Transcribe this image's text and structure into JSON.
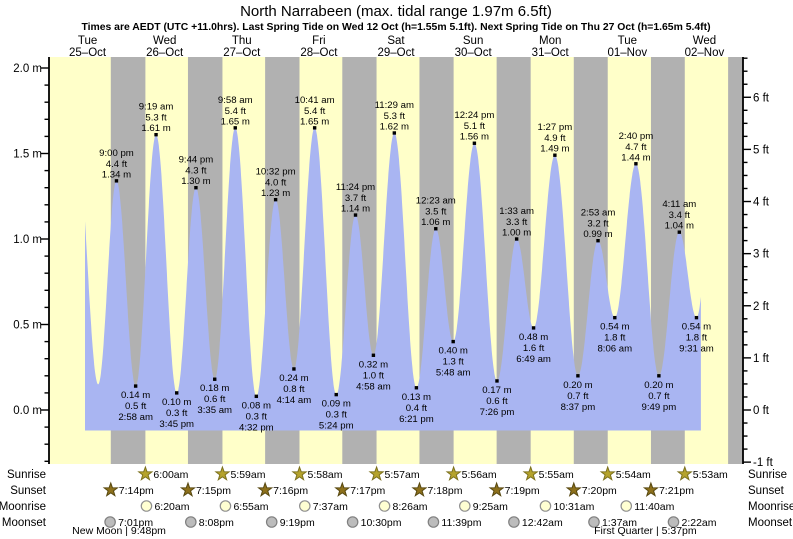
{
  "title": "North Narrabeen (max. tidal range 1.97m 6.5ft)",
  "subtitle": "Times are AEDT (UTC +11.0hrs). Last Spring Tide on Wed 12 Oct (h=1.55m 5.1ft). Next Spring Tide on Thu 27 Oct (h=1.65m 5.4ft)",
  "chart_data": {
    "type": "area",
    "title": "North Narrabeen (max. tidal range 1.97m 6.5ft)",
    "days": [
      {
        "dow": "Tue",
        "date": "25–Oct"
      },
      {
        "dow": "Wed",
        "date": "26–Oct"
      },
      {
        "dow": "Thu",
        "date": "27–Oct"
      },
      {
        "dow": "Fri",
        "date": "28–Oct"
      },
      {
        "dow": "Sat",
        "date": "29–Oct"
      },
      {
        "dow": "Sun",
        "date": "30–Oct"
      },
      {
        "dow": "Mon",
        "date": "31–Oct"
      },
      {
        "dow": "Tue",
        "date": "01–Nov"
      },
      {
        "dow": "Wed",
        "date": "02–Nov"
      }
    ],
    "y_left_labels": [
      {
        "m": 2.0,
        "text": "2.0 m"
      },
      {
        "m": 1.5,
        "text": "1.5 m"
      },
      {
        "m": 1.0,
        "text": "1.0 m"
      },
      {
        "m": 0.5,
        "text": "0.5 m"
      },
      {
        "m": 0.0,
        "text": "0.0 m"
      }
    ],
    "y_right_labels": [
      {
        "ft": 6,
        "text": "6 ft"
      },
      {
        "ft": 5,
        "text": "5 ft"
      },
      {
        "ft": 4,
        "text": "4 ft"
      },
      {
        "ft": 3,
        "text": "3 ft"
      },
      {
        "ft": 2,
        "text": "2 ft"
      },
      {
        "ft": 1,
        "text": "1 ft"
      },
      {
        "ft": 0,
        "text": "0 ft"
      },
      {
        "ft": -1,
        "text": "-1 ft"
      }
    ],
    "ylim_m": [
      -0.33,
      2.07
    ],
    "base_m": -0.12,
    "clip": {
      "start_abs_hour": 11.2,
      "end_abs_hour": 202.9
    },
    "extremes": [
      {
        "day": 0,
        "hour": 8.67,
        "m": 1.55,
        "type": "high",
        "show": false
      },
      {
        "day": 0,
        "hour": 15.3,
        "m": 0.15,
        "type": "low",
        "show": false
      },
      {
        "day": 0,
        "hour": 21.0,
        "m": 1.34,
        "ft": 4.4,
        "time": "9:00 pm",
        "type": "high",
        "show": true
      },
      {
        "day": 1,
        "hour": 2.97,
        "m": 0.14,
        "ft": 0.5,
        "time": "2:58 am",
        "type": "low",
        "show": true
      },
      {
        "day": 1,
        "hour": 9.32,
        "m": 1.61,
        "ft": 5.3,
        "time": "9:19 am",
        "type": "high",
        "show": true
      },
      {
        "day": 1,
        "hour": 15.75,
        "m": 0.1,
        "ft": 0.3,
        "time": "3:45 pm",
        "type": "low",
        "show": true
      },
      {
        "day": 1,
        "hour": 21.73,
        "m": 1.3,
        "ft": 4.3,
        "time": "9:44 pm",
        "type": "high",
        "show": true
      },
      {
        "day": 2,
        "hour": 3.58,
        "m": 0.18,
        "ft": 0.6,
        "time": "3:35 am",
        "type": "low",
        "show": true
      },
      {
        "day": 2,
        "hour": 9.97,
        "m": 1.65,
        "ft": 5.4,
        "time": "9:58 am",
        "type": "high",
        "show": true
      },
      {
        "day": 2,
        "hour": 16.53,
        "m": 0.08,
        "ft": 0.3,
        "time": "4:32 pm",
        "type": "low",
        "show": true
      },
      {
        "day": 2,
        "hour": 22.53,
        "m": 1.23,
        "ft": 4.0,
        "time": "10:32 pm",
        "type": "high",
        "show": true
      },
      {
        "day": 3,
        "hour": 4.23,
        "m": 0.24,
        "ft": 0.8,
        "time": "4:14 am",
        "type": "low",
        "show": true
      },
      {
        "day": 3,
        "hour": 10.68,
        "m": 1.65,
        "ft": 5.4,
        "time": "10:41 am",
        "type": "high",
        "show": true
      },
      {
        "day": 3,
        "hour": 17.4,
        "m": 0.09,
        "ft": 0.3,
        "time": "5:24 pm",
        "type": "low",
        "show": true
      },
      {
        "day": 3,
        "hour": 23.4,
        "m": 1.14,
        "ft": 3.7,
        "time": "11:24 pm",
        "type": "high",
        "show": true
      },
      {
        "day": 4,
        "hour": 4.97,
        "m": 0.32,
        "ft": 1.0,
        "time": "4:58 am",
        "type": "low",
        "show": true
      },
      {
        "day": 4,
        "hour": 11.48,
        "m": 1.62,
        "ft": 5.3,
        "time": "11:29 am",
        "type": "high",
        "show": true
      },
      {
        "day": 4,
        "hour": 18.35,
        "m": 0.13,
        "ft": 0.4,
        "time": "6:21 pm",
        "type": "low",
        "show": true
      },
      {
        "day": 5,
        "hour": 0.38,
        "m": 1.06,
        "ft": 3.5,
        "time": "12:23 am",
        "type": "high",
        "show": true
      },
      {
        "day": 5,
        "hour": 5.8,
        "m": 0.4,
        "ft": 1.3,
        "time": "5:48 am",
        "type": "low",
        "show": true
      },
      {
        "day": 5,
        "hour": 12.4,
        "m": 1.56,
        "ft": 5.1,
        "time": "12:24 pm",
        "type": "high",
        "show": true
      },
      {
        "day": 5,
        "hour": 19.43,
        "m": 0.17,
        "ft": 0.6,
        "time": "7:26 pm",
        "type": "low",
        "show": true
      },
      {
        "day": 6,
        "hour": 1.55,
        "m": 1.0,
        "ft": 3.3,
        "time": "1:33 am",
        "type": "high",
        "show": true
      },
      {
        "day": 6,
        "hour": 6.82,
        "m": 0.48,
        "ft": 1.6,
        "time": "6:49 am",
        "type": "low",
        "show": true
      },
      {
        "day": 6,
        "hour": 13.45,
        "m": 1.49,
        "ft": 4.9,
        "time": "1:27 pm",
        "type": "high",
        "show": true
      },
      {
        "day": 6,
        "hour": 20.62,
        "m": 0.2,
        "ft": 0.7,
        "time": "8:37 pm",
        "type": "low",
        "show": true
      },
      {
        "day": 7,
        "hour": 2.88,
        "m": 0.99,
        "ft": 3.2,
        "time": "2:53 am",
        "type": "high",
        "show": true
      },
      {
        "day": 7,
        "hour": 8.1,
        "m": 0.54,
        "ft": 1.8,
        "time": "8:06 am",
        "type": "low",
        "show": true
      },
      {
        "day": 7,
        "hour": 14.67,
        "m": 1.44,
        "ft": 4.7,
        "time": "2:40 pm",
        "type": "high",
        "show": true
      },
      {
        "day": 7,
        "hour": 21.82,
        "m": 0.2,
        "ft": 0.7,
        "time": "9:49 pm",
        "type": "low",
        "show": true
      },
      {
        "day": 8,
        "hour": 4.18,
        "m": 1.04,
        "ft": 3.4,
        "time": "4:11 am",
        "type": "high",
        "show": true
      },
      {
        "day": 8,
        "hour": 9.52,
        "m": 0.54,
        "ft": 1.8,
        "time": "9:31 am",
        "type": "low",
        "show": true
      },
      {
        "day": 8,
        "hour": 15.3,
        "m": 1.45,
        "type": "high",
        "show": false
      }
    ],
    "night_bands_days": [
      [
        0.8014,
        1.25
      ],
      [
        1.8021,
        2.2493
      ],
      [
        2.8028,
        3.2486
      ],
      [
        3.8035,
        4.2479
      ],
      [
        4.8042,
        5.2472
      ],
      [
        5.8049,
        6.2465
      ],
      [
        6.8056,
        7.2458
      ],
      [
        7.8063,
        8.2451
      ],
      [
        8.8069,
        9.0
      ]
    ]
  },
  "sun_moon": {
    "rows": [
      {
        "key": "sunrise",
        "label": "Sunrise",
        "icon": "sunrise-star-icon",
        "events": [
          {
            "day": 1,
            "hour": 6.0,
            "time": "6:00am"
          },
          {
            "day": 2,
            "hour": 5.983,
            "time": "5:59am"
          },
          {
            "day": 3,
            "hour": 5.967,
            "time": "5:58am"
          },
          {
            "day": 4,
            "hour": 5.95,
            "time": "5:57am"
          },
          {
            "day": 5,
            "hour": 5.933,
            "time": "5:56am"
          },
          {
            "day": 6,
            "hour": 5.917,
            "time": "5:55am"
          },
          {
            "day": 7,
            "hour": 5.9,
            "time": "5:54am"
          },
          {
            "day": 8,
            "hour": 5.883,
            "time": "5:53am"
          }
        ]
      },
      {
        "key": "sunset",
        "label": "Sunset",
        "icon": "sunset-star-icon",
        "events": [
          {
            "day": 0,
            "hour": 19.233,
            "time": "7:14pm"
          },
          {
            "day": 1,
            "hour": 19.25,
            "time": "7:15pm"
          },
          {
            "day": 2,
            "hour": 19.267,
            "time": "7:16pm"
          },
          {
            "day": 3,
            "hour": 19.283,
            "time": "7:17pm"
          },
          {
            "day": 4,
            "hour": 19.3,
            "time": "7:18pm"
          },
          {
            "day": 5,
            "hour": 19.317,
            "time": "7:19pm"
          },
          {
            "day": 6,
            "hour": 19.333,
            "time": "7:20pm"
          },
          {
            "day": 7,
            "hour": 19.35,
            "time": "7:21pm"
          }
        ]
      },
      {
        "key": "moonrise",
        "label": "Moonrise",
        "icon": "moonrise-icon",
        "events": [
          {
            "day": 1,
            "hour": 6.333,
            "time": "6:20am"
          },
          {
            "day": 2,
            "hour": 6.917,
            "time": "6:55am"
          },
          {
            "day": 3,
            "hour": 7.617,
            "time": "7:37am"
          },
          {
            "day": 4,
            "hour": 8.433,
            "time": "8:26am"
          },
          {
            "day": 5,
            "hour": 9.417,
            "time": "9:25am"
          },
          {
            "day": 6,
            "hour": 10.517,
            "time": "10:31am"
          },
          {
            "day": 7,
            "hour": 11.667,
            "time": "11:40am"
          }
        ]
      },
      {
        "key": "moonset",
        "label": "Moonset",
        "icon": "moonset-icon",
        "events": [
          {
            "day": 0,
            "hour": 19.017,
            "time": "7:01pm"
          },
          {
            "day": 1,
            "hour": 20.133,
            "time": "8:08pm"
          },
          {
            "day": 2,
            "hour": 21.317,
            "time": "9:19pm"
          },
          {
            "day": 3,
            "hour": 22.5,
            "time": "10:30pm"
          },
          {
            "day": 4,
            "hour": 23.65,
            "time": "11:39pm"
          },
          {
            "day": 6,
            "hour": 0.7,
            "time": "12:42am"
          },
          {
            "day": 7,
            "hour": 1.617,
            "time": "1:37am"
          },
          {
            "day": 8,
            "hour": 2.367,
            "time": "2:22am"
          }
        ]
      }
    ],
    "phases": [
      {
        "day": 0,
        "hour": 21.8,
        "label": "New Moon | 9:48pm"
      },
      {
        "day": 7,
        "hour": 17.62,
        "label": "First Quarter | 5:37pm"
      }
    ]
  },
  "colors": {
    "day_bg": "#ffffc9",
    "night_bg": "#b1b1b1",
    "tide_fill": "#a9b5f2",
    "day_label": "#f01010",
    "axis": "#000000",
    "text": "#000000",
    "sunrise_star": "#b5a32c",
    "sunrise_star_stroke": "#7c711e",
    "sunset_star": "#8d701b",
    "sunset_star_stroke": "#574810",
    "moonrise_fill": "#ffffd2",
    "moonrise_stroke": "#8f8f8f",
    "moonset_fill": "#bcbcbc",
    "moonset_stroke": "#7f7f7f"
  }
}
